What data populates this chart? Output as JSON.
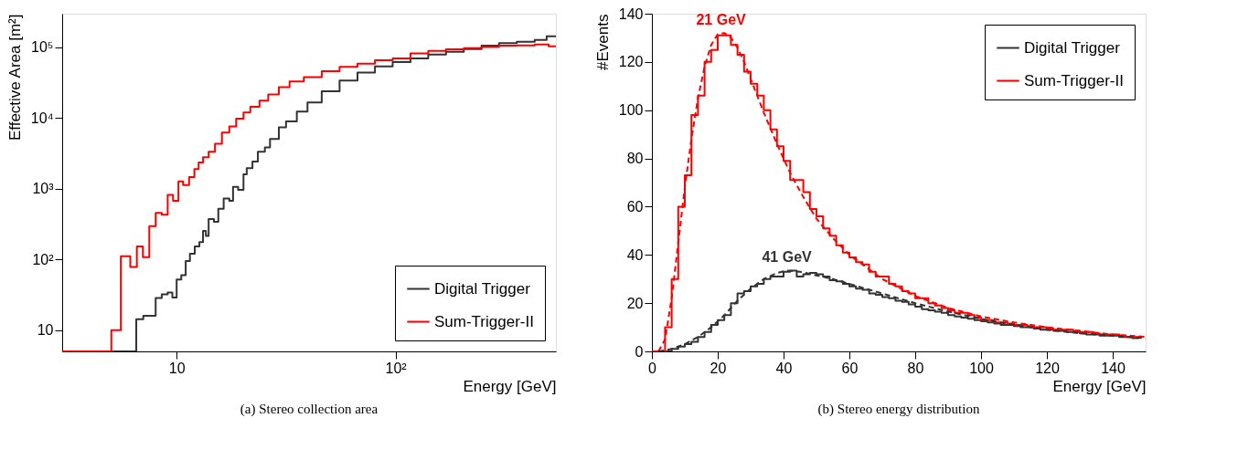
{
  "chart_data": [
    {
      "type": "step",
      "title": "(a) Stereo collection area",
      "xlabel": "Energy [GeV]",
      "ylabel": "Effective Area [m²]",
      "log": "xy",
      "xlim": [
        3,
        540
      ],
      "ylim": [
        5,
        300000
      ],
      "xticks": [
        10,
        {
          "value": 100,
          "label": "10²"
        }
      ],
      "yticks": [
        10,
        {
          "value": 100,
          "label": "10²"
        },
        {
          "value": 1000,
          "label": "10³"
        },
        {
          "value": 10000,
          "label": "10⁴"
        },
        {
          "value": 100000,
          "label": "10⁵"
        }
      ],
      "grid": false,
      "legend": "bottom right",
      "series": [
        {
          "name": "Digital Trigger",
          "color": "#333333",
          "x": [
            3,
            6.54,
            7.04,
            8.02,
            8.55,
            9.1,
            9.56,
            10,
            10.5,
            11,
            11.5,
            12.1,
            12.7,
            13.2,
            13.6,
            14,
            14.8,
            15.5,
            16.4,
            17.4,
            18.1,
            19.1,
            20.2,
            20.9,
            22.2,
            23.5,
            25.3,
            26.7,
            29.3,
            31.6,
            35.4,
            39.6,
            46,
            55.5,
            67,
            80.5,
            97,
            117,
            141,
            170,
            205,
            247,
            297,
            358,
            432,
            490,
            540
          ],
          "values": [
            5,
            14.3,
            16,
            28.5,
            32,
            34,
            29,
            52,
            60,
            95,
            120,
            153,
            176,
            254,
            215,
            373,
            340,
            520,
            730,
            675,
            1060,
            965,
            1600,
            1960,
            2430,
            3350,
            3850,
            5080,
            7400,
            8950,
            12400,
            16700,
            24000,
            34000,
            44000,
            54000,
            62000,
            70000,
            79000,
            87000,
            95000,
            106000,
            115000,
            120000,
            128000,
            144000,
            144000
          ]
        },
        {
          "name": "Sum-Trigger-II",
          "color": "#ff0000",
          "x": [
            3,
            5.03,
            5.56,
            6.14,
            6.58,
            7.01,
            7.5,
            8.02,
            8.55,
            9.1,
            9.63,
            10.19,
            10.7,
            11.4,
            12.05,
            12.6,
            13.2,
            14,
            14.97,
            16.1,
            17.4,
            18.7,
            20.2,
            21.7,
            23.9,
            26.2,
            29.3,
            32.8,
            38.1,
            46,
            55.5,
            67,
            80.5,
            97,
            117,
            141,
            170,
            205,
            247,
            297,
            358,
            432,
            500,
            540
          ],
          "values": [
            5,
            10,
            111,
            78,
            153,
            108,
            295,
            455,
            430,
            818,
            675,
            1270,
            1125,
            1460,
            1900,
            2350,
            2800,
            3350,
            4350,
            6250,
            7600,
            9800,
            12000,
            14500,
            17700,
            21600,
            27300,
            33000,
            38000,
            46000,
            53000,
            59000,
            66000,
            70000,
            82000,
            89000,
            94000,
            98000,
            101000,
            106000,
            107000,
            110000,
            104000,
            104000
          ]
        }
      ]
    },
    {
      "type": "step",
      "title": "(b) Stereo energy distribution",
      "xlabel": "Energy [GeV]",
      "ylabel": "#Events",
      "xlim": [
        0,
        150
      ],
      "ylim": [
        0,
        140
      ],
      "xticks": [
        0,
        20,
        40,
        60,
        80,
        100,
        120,
        140
      ],
      "yticks": [
        0,
        20,
        40,
        60,
        80,
        100,
        120,
        140
      ],
      "grid": false,
      "legend": "top right",
      "annotations": [
        {
          "text": "21 GeV",
          "x": 21,
          "y": 132
        },
        {
          "text": "41 GeV",
          "x": 41,
          "y": 33.5
        }
      ],
      "series": [
        {
          "name": "Digital Trigger",
          "color": "#333333",
          "x": [
            0,
            2,
            4,
            6,
            8,
            10,
            12,
            14,
            16,
            18,
            20,
            22,
            24,
            26,
            28,
            30,
            32,
            34,
            36,
            38,
            40,
            42,
            44,
            46,
            48,
            50,
            52,
            54,
            56,
            58,
            60,
            62,
            64,
            66,
            68,
            70,
            72,
            74,
            76,
            78,
            80,
            82,
            84,
            86,
            88,
            90,
            92,
            94,
            96,
            98,
            100,
            102,
            104,
            106,
            108,
            110,
            112,
            114,
            116,
            118,
            120,
            122,
            124,
            126,
            128,
            130,
            132,
            134,
            136,
            138,
            140,
            142,
            144,
            146,
            148
          ],
          "values": [
            0,
            0,
            0,
            1,
            2,
            3,
            4,
            6,
            8,
            11,
            13,
            15,
            20,
            24,
            25,
            27,
            28,
            30,
            31,
            31,
            33,
            33.5,
            31,
            32,
            32.5,
            32,
            31,
            29.5,
            29,
            28,
            27,
            26,
            25.5,
            24,
            23.5,
            22.5,
            22,
            21,
            20.5,
            19.5,
            18.5,
            17.5,
            17,
            16.5,
            16,
            15,
            14.5,
            14,
            13.5,
            13,
            12.5,
            12,
            11.5,
            11,
            11,
            10.5,
            10,
            10,
            9.5,
            9,
            9,
            8.5,
            8.5,
            8,
            8,
            7.5,
            7,
            7,
            6.5,
            6.5,
            6.5,
            6,
            6,
            5.5,
            5.5
          ]
        },
        {
          "name": "Sum-Trigger-II",
          "color": "#ff0000",
          "x": [
            0,
            2,
            4,
            6,
            8,
            10,
            12,
            14,
            16,
            18,
            20,
            22,
            24,
            26,
            28,
            30,
            32,
            34,
            36,
            38,
            40,
            42,
            44,
            46,
            48,
            50,
            52,
            54,
            56,
            58,
            60,
            62,
            64,
            66,
            68,
            70,
            72,
            74,
            76,
            78,
            80,
            82,
            84,
            86,
            88,
            90,
            92,
            94,
            96,
            98,
            100,
            102,
            104,
            106,
            108,
            110,
            112,
            114,
            116,
            118,
            120,
            122,
            124,
            126,
            128,
            130,
            132,
            134,
            136,
            138,
            140,
            142,
            144,
            146,
            148
          ],
          "values": [
            0,
            0,
            10,
            30,
            60,
            73,
            98,
            106,
            120,
            125,
            131,
            131,
            127,
            123,
            116,
            111,
            106,
            100,
            92,
            85,
            79,
            71,
            71,
            66,
            59,
            56,
            51,
            48,
            44,
            41,
            39,
            37,
            36,
            33,
            31,
            31,
            28,
            27,
            25,
            24,
            22,
            22,
            20,
            19,
            18,
            17,
            16,
            16,
            15,
            14,
            13,
            13,
            12,
            12,
            11.5,
            11,
            11,
            10.5,
            10,
            10,
            9.5,
            9,
            9,
            9,
            8.5,
            8,
            8,
            7.5,
            7,
            7,
            7,
            6.5,
            6,
            6,
            5.5
          ]
        },
        {
          "type": "line",
          "line_style": "dashed",
          "color": "#ff0000",
          "x": [
            2,
            4,
            6,
            8,
            10,
            12,
            14,
            16,
            18,
            20,
            22,
            24,
            26,
            28,
            30,
            34,
            38,
            42,
            46,
            50,
            55,
            60,
            65,
            70,
            75,
            80,
            90,
            100,
            110,
            120,
            130,
            140,
            150
          ],
          "values": [
            0,
            5,
            22,
            45,
            68,
            88,
            105,
            118,
            127,
            131.5,
            132,
            130,
            126,
            120,
            113,
            99,
            86,
            74,
            64,
            55,
            47,
            40,
            35,
            30,
            26.5,
            23,
            18,
            14.5,
            12,
            10,
            8.5,
            7,
            6
          ]
        },
        {
          "type": "line",
          "line_style": "dashed",
          "color": "#333333",
          "x": [
            2,
            6,
            10,
            14,
            18,
            22,
            26,
            30,
            34,
            38,
            41,
            45,
            50,
            55,
            60,
            70,
            80,
            90,
            100,
            110,
            120,
            130,
            140,
            150
          ],
          "values": [
            0,
            1,
            3,
            6,
            10,
            15,
            21,
            26,
            30,
            32.5,
            33.5,
            33,
            31.5,
            30,
            28,
            24,
            20,
            16.5,
            13.5,
            11,
            9,
            7.5,
            6.5,
            5.5
          ]
        }
      ]
    }
  ]
}
